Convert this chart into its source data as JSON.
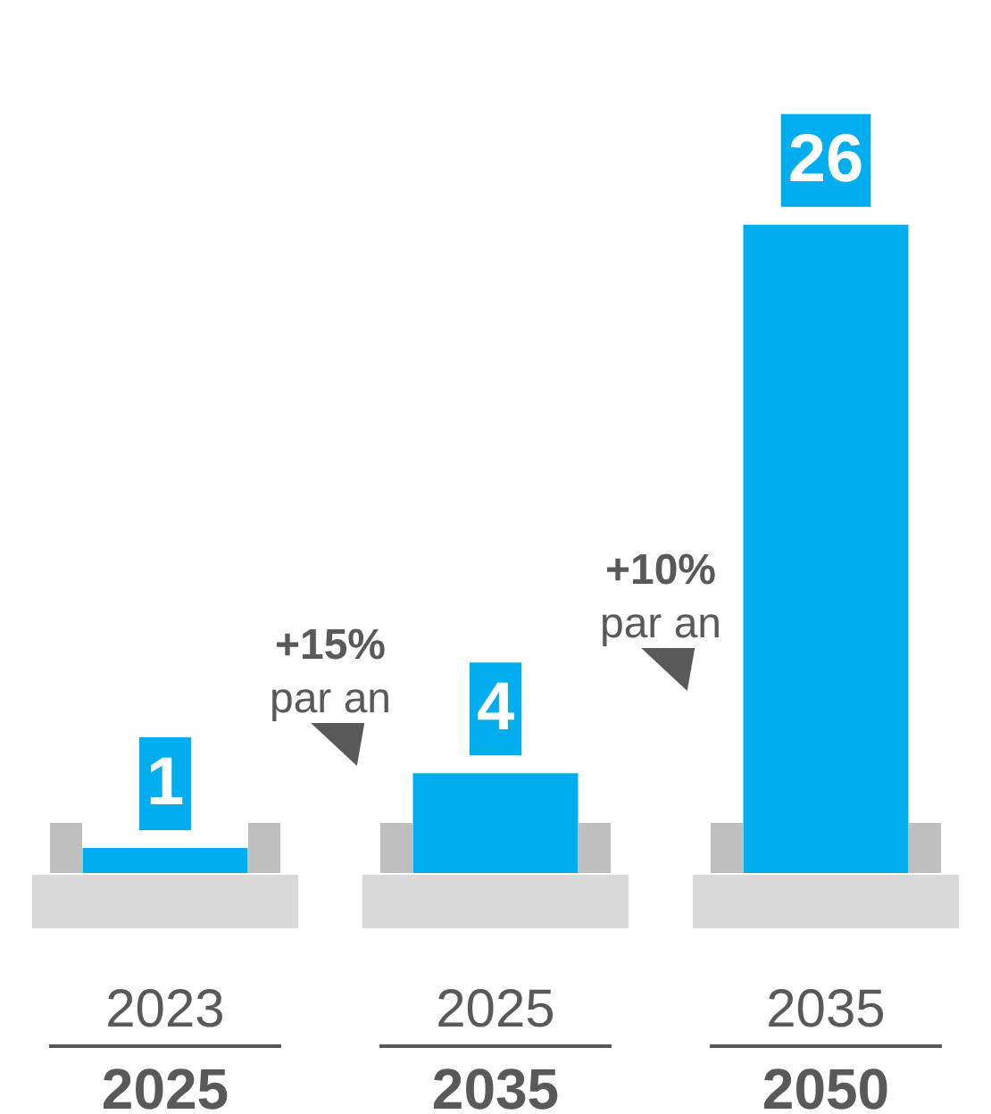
{
  "chart_data": {
    "type": "bar",
    "categories": [
      "2023\n2025",
      "2025\n2035",
      "2035\n2050"
    ],
    "values": [
      1,
      4,
      26
    ],
    "color": "#00aeef",
    "data_labels": true,
    "legend": false,
    "annotations": [
      "+15%\npar an",
      "+10%\npar an"
    ]
  }
}
